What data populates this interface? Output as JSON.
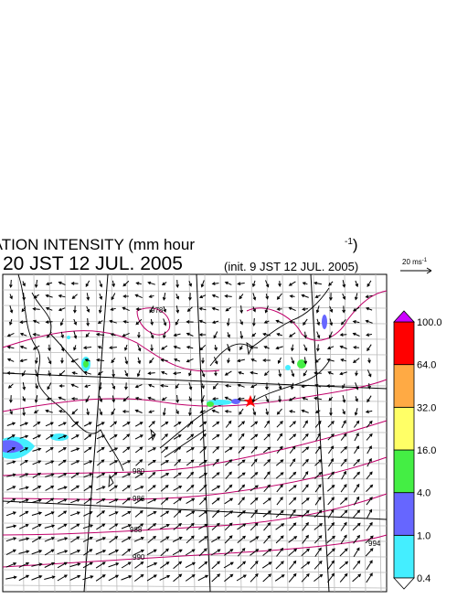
{
  "header": {
    "title": "PRECIPITATION INTENSITY (mm hour",
    "title_sup": "-1",
    "title_end": ")",
    "valid_time": "20 JST 12 JUL. 2005",
    "init_time": "(init. 9 JST 12 JUL. 2005)",
    "vector_scale": "20 ms",
    "vector_scale_sup": "-1"
  },
  "colorbar": {
    "labels": [
      "0.4",
      "1.0",
      "4.0",
      "16.0",
      "32.0",
      "64.0",
      "100.0"
    ],
    "colors": [
      "#44eeff",
      "#6666ff",
      "#44ee44",
      "#ffff66",
      "#ffaa44",
      "#ff0000"
    ],
    "over_color": "#cc00ff"
  },
  "contour_labels": [
    "978",
    "980",
    "986",
    "988",
    "990",
    "994"
  ]
}
